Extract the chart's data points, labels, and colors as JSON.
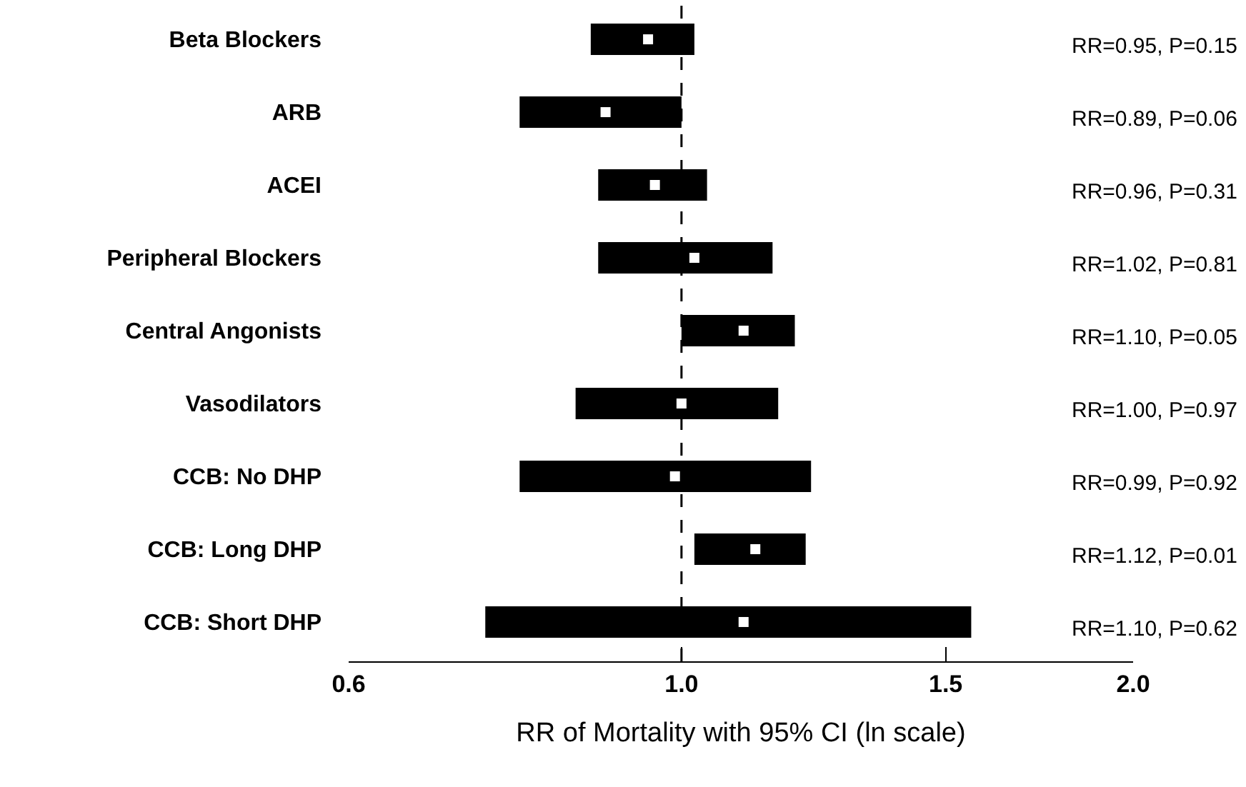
{
  "chart_data": {
    "type": "bar",
    "orientation": "horizontal",
    "xlabel": "RR of Mortality with 95% CI (ln scale)",
    "categories": [
      "Beta Blockers",
      "ARB",
      "ACEI",
      "Peripheral Blockers",
      "Central Angonists",
      "Vasodilators",
      "CCB: No DHP",
      "CCB: Long DHP",
      "CCB: Short DHP"
    ],
    "series": [
      {
        "color": "#000000",
        "base": [
          0.87,
          0.78,
          0.88,
          0.88,
          1.0,
          0.85,
          0.78,
          1.02,
          0.74
        ],
        "values": [
          0.15,
          0.22,
          0.16,
          0.27,
          0.19,
          0.31,
          0.44,
          0.19,
          0.82
        ]
      },
      {
        "type": "scatter",
        "color": "#ffffff",
        "values": [
          0.95,
          0.89,
          0.96,
          1.02,
          1.1,
          1.0,
          0.99,
          1.12,
          1.1
        ]
      }
    ],
    "log": "x",
    "xlim": [
      0.6,
      2.0
    ],
    "xticks": [
      {
        "value": 0.6,
        "label": "0.6"
      },
      {
        "value": 1,
        "label": "1.0"
      },
      {
        "value": 1.5,
        "label": "1.5"
      },
      {
        "value": 2,
        "label": "2.0"
      }
    ],
    "ref_lines": [
      {
        "axis": "x",
        "value": 1,
        "line_style": "dashed",
        "color": "#000000"
      }
    ],
    "annotations": [
      "RR=0.95, P=0.15",
      "RR=0.89, P=0.06",
      "RR=0.96, P=0.31",
      "RR=1.02, P=0.81",
      "RR=1.10, P=0.05",
      "RR=1.00, P=0.97",
      "RR=0.99, P=0.92",
      "RR=1.12, P=0.01",
      "RR=1.10, P=0.62"
    ],
    "grid": false,
    "marker": "square"
  }
}
